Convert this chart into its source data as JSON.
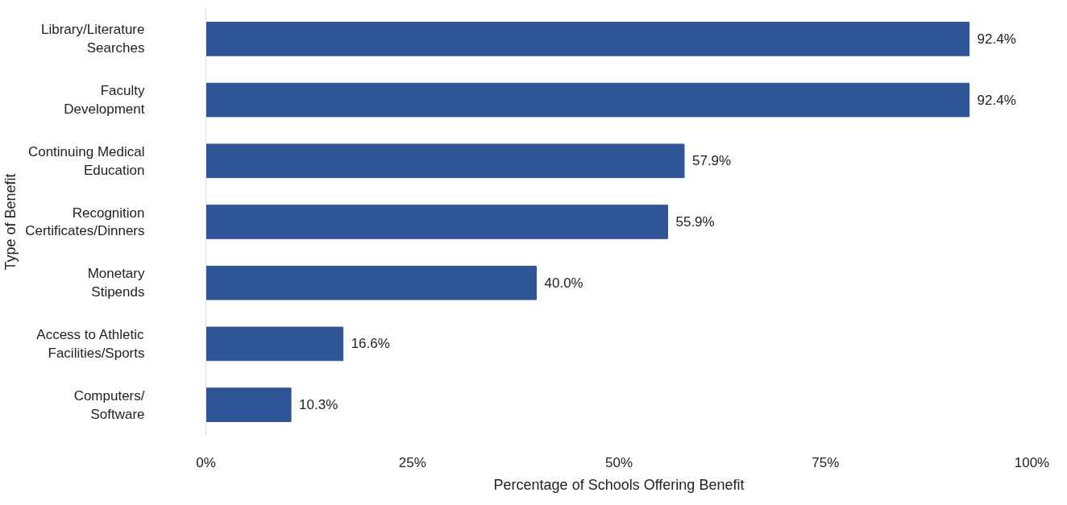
{
  "chart_data": {
    "type": "bar",
    "orientation": "horizontal",
    "xlabel": "Percentage of Schools Offering Benefit",
    "ylabel": "Type of Benefit",
    "categories": [
      "Library/Literature\nSearches",
      "Faculty\nDevelopment",
      "Continuing Medical\nEducation",
      "Recognition\nCertificates/Dinners",
      "Monetary\nStipends",
      "Access to Athletic\nFacilities/Sports",
      "Computers/\nSoftware"
    ],
    "values": [
      92.4,
      92.4,
      57.9,
      55.9,
      40.0,
      16.6,
      10.3
    ],
    "value_labels": [
      "92.4%",
      "92.4%",
      "57.9%",
      "55.9%",
      "40.0%",
      "16.6%",
      "10.3%"
    ],
    "color": "#2f5597",
    "xlim": [
      0,
      100
    ],
    "xticks": [
      {
        "value": 0,
        "label": "0%"
      },
      {
        "value": 25,
        "label": "25%"
      },
      {
        "value": 50,
        "label": "50%"
      },
      {
        "value": 75,
        "label": "75%"
      },
      {
        "value": 100,
        "label": "100%"
      }
    ],
    "grid": false
  }
}
